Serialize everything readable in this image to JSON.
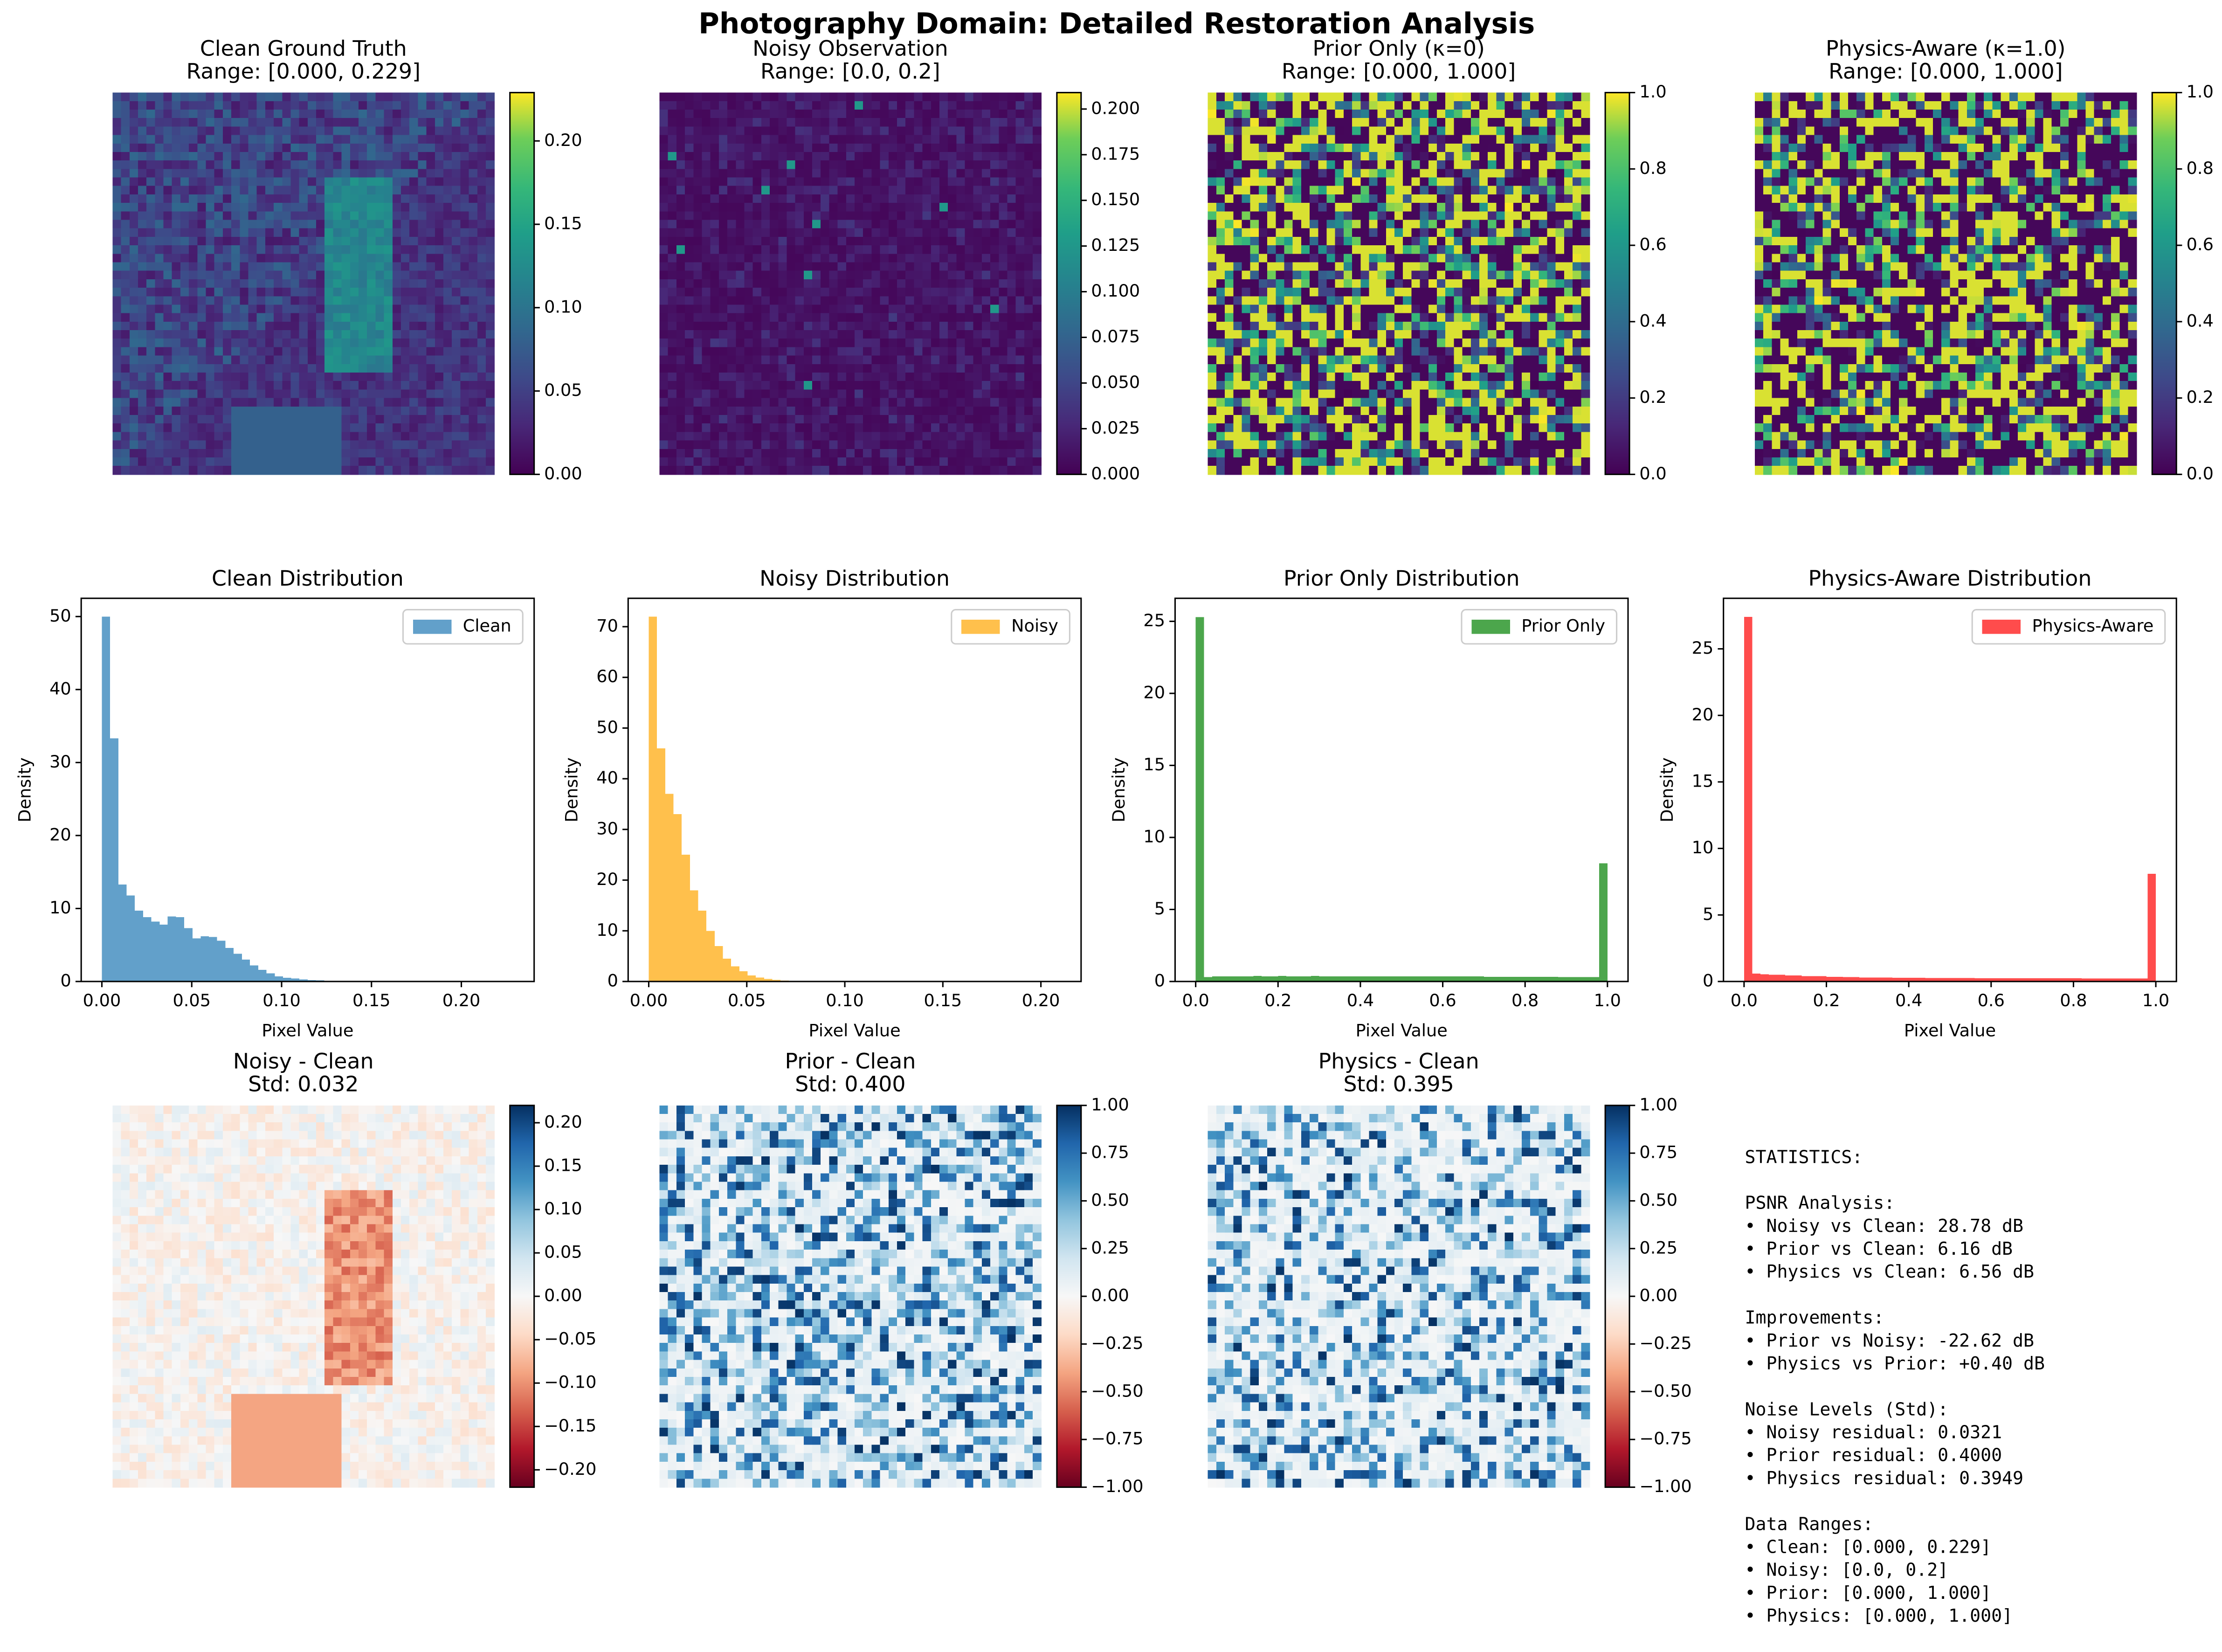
{
  "title": "Photography Domain: Detailed Restoration Analysis",
  "chart_data": [
    {
      "type": "heatmap",
      "title": "Clean Ground Truth",
      "subtitle": "Range: [0.000, 0.229]",
      "colormap": "viridis",
      "clim": [
        0,
        0.229
      ],
      "cticks": [
        {
          "value": 0,
          "label": "0.00"
        },
        0.05,
        {
          "value": 0.1,
          "label": "0.10"
        },
        0.15,
        {
          "value": 0.2,
          "label": "0.20"
        }
      ]
    },
    {
      "type": "heatmap",
      "title": "Noisy Observation",
      "subtitle": "Range: [0.0, 0.2]",
      "colormap": "viridis",
      "clim": [
        0,
        0.209
      ],
      "cticks": [
        {
          "value": 0,
          "label": "0.000"
        },
        0.025,
        {
          "value": 0.05,
          "label": "0.050"
        },
        0.075,
        {
          "value": 0.1,
          "label": "0.100"
        },
        0.125,
        {
          "value": 0.15,
          "label": "0.150"
        },
        0.175,
        {
          "value": 0.2,
          "label": "0.200"
        }
      ]
    },
    {
      "type": "heatmap",
      "title": "Prior Only (κ=0)",
      "subtitle": "Range: [0.000, 1.000]",
      "colormap": "viridis",
      "clim": [
        0,
        1
      ],
      "cticks": [
        {
          "value": 0,
          "label": "0.0"
        },
        0.2,
        0.4,
        0.6,
        0.8,
        {
          "value": 1,
          "label": "1.0"
        }
      ]
    },
    {
      "type": "heatmap",
      "title": "Physics-Aware (κ=1.0)",
      "subtitle": "Range: [0.000, 1.000]",
      "colormap": "viridis",
      "clim": [
        0,
        1
      ],
      "cticks": [
        {
          "value": 0,
          "label": "0.0"
        },
        0.2,
        0.4,
        0.6,
        0.8,
        {
          "value": 1,
          "label": "1.0"
        }
      ]
    },
    {
      "type": "histogram",
      "title": "Clean Distribution",
      "xlabel": "Pixel Value",
      "ylabel": "Density",
      "xlim": [
        -0.0115,
        0.2405
      ],
      "ylim": [
        0,
        52.5
      ],
      "xticks": [
        {
          "value": 0,
          "label": "0.00"
        },
        0.05,
        {
          "value": 0.1,
          "label": "0.10"
        },
        0.15,
        {
          "value": 0.2,
          "label": "0.20"
        }
      ],
      "yticks": [
        0,
        10,
        20,
        30,
        40,
        50
      ],
      "bins": [
        0,
        0.0046,
        0.0092,
        0.0137,
        0.0183,
        0.0229,
        0.0275,
        0.0321,
        0.0366,
        0.0412,
        0.0458,
        0.0504,
        0.055,
        0.0595,
        0.0641,
        0.0687,
        0.0733,
        0.0779,
        0.0824,
        0.087,
        0.0916,
        0.0962,
        0.1008,
        0.1053,
        0.1099,
        0.1145,
        0.1191,
        0.1237,
        0.1282,
        0.1328,
        0.1374,
        0.142,
        0.1466,
        0.1511,
        0.1557,
        0.1603,
        0.1649,
        0.1695,
        0.174,
        0.1786,
        0.1832,
        0.1878,
        0.1924,
        0.1969,
        0.2015,
        0.2061,
        0.2107,
        0.2153,
        0.2198,
        0.2244,
        0.229
      ],
      "series": [
        {
          "name": "Clean",
          "color": "#1f77b4",
          "values": [
            50,
            33.3,
            13.3,
            11.8,
            9.7,
            8.8,
            8.2,
            7.8,
            8.9,
            8.8,
            7.3,
            5.9,
            6.2,
            6.1,
            5.6,
            4.6,
            3.8,
            3.0,
            2.2,
            1.6,
            1.1,
            0.7,
            0.5,
            0.4,
            0.3,
            0.2,
            0.15,
            0.1,
            0.05,
            0.03,
            0.02,
            0.01,
            0,
            0,
            0,
            0,
            0,
            0,
            0,
            0,
            0,
            0,
            0,
            0,
            0,
            0,
            0,
            0,
            0,
            0
          ]
        }
      ],
      "legend": "upper right"
    },
    {
      "type": "histogram",
      "title": "Noisy Distribution",
      "xlabel": "Pixel Value",
      "ylabel": "Density",
      "xlim": [
        -0.0105,
        0.2205
      ],
      "ylim": [
        0,
        75.6
      ],
      "xticks": [
        {
          "value": 0,
          "label": "0.00"
        },
        0.05,
        {
          "value": 0.1,
          "label": "0.10"
        },
        0.15,
        {
          "value": 0.2,
          "label": "0.20"
        }
      ],
      "yticks": [
        0,
        10,
        20,
        30,
        40,
        50,
        60,
        70
      ],
      "bins": [
        0,
        0.0042,
        0.0084,
        0.0126,
        0.0168,
        0.021,
        0.0252,
        0.0294,
        0.0336,
        0.0378,
        0.042,
        0.0462,
        0.0504,
        0.0546,
        0.0588,
        0.063,
        0.0672,
        0.0714,
        0.0756,
        0.0798,
        0.084,
        0.0882,
        0.0924,
        0.0966,
        0.1008,
        0.105,
        0.1092,
        0.1134,
        0.1176,
        0.1218,
        0.126,
        0.1302,
        0.1344,
        0.1386,
        0.1428,
        0.147,
        0.1512,
        0.1554,
        0.1596,
        0.1638,
        0.168,
        0.1722,
        0.1764,
        0.1806,
        0.1848,
        0.189,
        0.1932,
        0.1974,
        0.2016,
        0.2058,
        0.21
      ],
      "series": [
        {
          "name": "Noisy",
          "color": "#ffa500",
          "values": [
            72,
            46,
            37,
            33,
            25,
            18,
            14,
            10,
            7,
            4.5,
            3,
            2,
            1.2,
            0.8,
            0.5,
            0.3,
            0.2,
            0.1,
            0.05,
            0,
            0,
            0,
            0,
            0,
            0,
            0,
            0,
            0,
            0,
            0,
            0,
            0,
            0,
            0,
            0,
            0,
            0,
            0,
            0,
            0,
            0,
            0,
            0,
            0,
            0,
            0,
            0,
            0,
            0,
            0
          ]
        }
      ],
      "legend": "upper right"
    },
    {
      "type": "histogram",
      "title": "Prior Only Distribution",
      "xlabel": "Pixel Value",
      "ylabel": "Density",
      "xlim": [
        -0.05,
        1.05
      ],
      "ylim": [
        0,
        26.6
      ],
      "xticks": [
        {
          "value": 0,
          "label": "0.0"
        },
        0.2,
        0.4,
        0.6,
        0.8,
        {
          "value": 1,
          "label": "1.0"
        }
      ],
      "yticks": [
        0,
        5,
        10,
        15,
        20,
        25
      ],
      "bins": [
        0,
        0.02,
        0.04,
        0.06,
        0.08,
        0.1,
        0.12,
        0.14,
        0.16,
        0.18,
        0.2,
        0.22,
        0.24,
        0.26,
        0.28,
        0.3,
        0.32,
        0.34,
        0.36,
        0.38,
        0.4,
        0.42,
        0.44,
        0.46,
        0.48,
        0.5,
        0.52,
        0.54,
        0.56,
        0.58,
        0.6,
        0.62,
        0.64,
        0.66,
        0.68,
        0.7,
        0.72,
        0.74,
        0.76,
        0.78,
        0.8,
        0.82,
        0.84,
        0.86,
        0.88,
        0.9,
        0.92,
        0.94,
        0.96,
        0.98,
        1
      ],
      "series": [
        {
          "name": "Prior Only",
          "color": "#008000",
          "values": [
            25.3,
            0.3,
            0.35,
            0.35,
            0.35,
            0.35,
            0.35,
            0.38,
            0.35,
            0.35,
            0.38,
            0.35,
            0.35,
            0.35,
            0.38,
            0.35,
            0.35,
            0.35,
            0.35,
            0.35,
            0.35,
            0.35,
            0.35,
            0.35,
            0.35,
            0.35,
            0.35,
            0.35,
            0.35,
            0.35,
            0.35,
            0.35,
            0.35,
            0.35,
            0.35,
            0.33,
            0.33,
            0.33,
            0.33,
            0.33,
            0.33,
            0.33,
            0.33,
            0.33,
            0.3,
            0.3,
            0.3,
            0.3,
            0.3,
            8.2
          ]
        }
      ],
      "legend": "upper right"
    },
    {
      "type": "histogram",
      "title": "Physics-Aware Distribution",
      "xlabel": "Pixel Value",
      "ylabel": "Density",
      "xlim": [
        -0.05,
        1.05
      ],
      "ylim": [
        0,
        28.8
      ],
      "xticks": [
        {
          "value": 0,
          "label": "0.0"
        },
        0.2,
        0.4,
        0.6,
        0.8,
        {
          "value": 1,
          "label": "1.0"
        }
      ],
      "yticks": [
        0,
        5,
        10,
        15,
        20,
        25
      ],
      "bins": [
        0,
        0.02,
        0.04,
        0.06,
        0.08,
        0.1,
        0.12,
        0.14,
        0.16,
        0.18,
        0.2,
        0.22,
        0.24,
        0.26,
        0.28,
        0.3,
        0.32,
        0.34,
        0.36,
        0.38,
        0.4,
        0.42,
        0.44,
        0.46,
        0.48,
        0.5,
        0.52,
        0.54,
        0.56,
        0.58,
        0.6,
        0.62,
        0.64,
        0.66,
        0.68,
        0.7,
        0.72,
        0.74,
        0.76,
        0.78,
        0.8,
        0.82,
        0.84,
        0.86,
        0.88,
        0.9,
        0.92,
        0.94,
        0.96,
        0.98,
        1
      ],
      "series": [
        {
          "name": "Physics-Aware",
          "color": "#ff0000",
          "values": [
            27.4,
            0.6,
            0.55,
            0.5,
            0.5,
            0.45,
            0.45,
            0.4,
            0.4,
            0.4,
            0.35,
            0.35,
            0.33,
            0.33,
            0.3,
            0.3,
            0.3,
            0.3,
            0.28,
            0.28,
            0.28,
            0.28,
            0.27,
            0.27,
            0.27,
            0.26,
            0.26,
            0.26,
            0.25,
            0.25,
            0.25,
            0.25,
            0.25,
            0.25,
            0.25,
            0.24,
            0.24,
            0.24,
            0.24,
            0.24,
            0.24,
            0.23,
            0.23,
            0.23,
            0.23,
            0.22,
            0.22,
            0.22,
            0.22,
            8.1
          ]
        }
      ],
      "legend": "upper right"
    },
    {
      "type": "heatmap",
      "title": "Noisy - Clean",
      "subtitle": "Std: 0.032",
      "colormap": "RdBu",
      "clim": [
        -0.22,
        0.22
      ],
      "cticks": [
        {
          "value": -0.2,
          "label": "−0.20"
        },
        {
          "value": -0.15,
          "label": "−0.15"
        },
        {
          "value": -0.1,
          "label": "−0.10"
        },
        {
          "value": -0.05,
          "label": "−0.05"
        },
        {
          "value": 0,
          "label": "0.00"
        },
        0.05,
        {
          "value": 0.1,
          "label": "0.10"
        },
        0.15,
        {
          "value": 0.2,
          "label": "0.20"
        }
      ]
    },
    {
      "type": "heatmap",
      "title": "Prior - Clean",
      "subtitle": "Std: 0.400",
      "colormap": "RdBu",
      "clim": [
        -1,
        1
      ],
      "cticks": [
        {
          "value": -1,
          "label": "−1.00"
        },
        {
          "value": -0.75,
          "label": "−0.75"
        },
        {
          "value": -0.5,
          "label": "−0.50"
        },
        {
          "value": -0.25,
          "label": "−0.25"
        },
        {
          "value": 0,
          "label": "0.00"
        },
        0.25,
        {
          "value": 0.5,
          "label": "0.50"
        },
        0.75,
        {
          "value": 1,
          "label": "1.00"
        }
      ]
    },
    {
      "type": "heatmap",
      "title": "Physics - Clean",
      "subtitle": "Std: 0.395",
      "colormap": "RdBu",
      "clim": [
        -1,
        1
      ],
      "cticks": [
        {
          "value": -1,
          "label": "−1.00"
        },
        {
          "value": -0.75,
          "label": "−0.75"
        },
        {
          "value": -0.5,
          "label": "−0.50"
        },
        {
          "value": -0.25,
          "label": "−0.25"
        },
        {
          "value": 0,
          "label": "0.00"
        },
        0.25,
        {
          "value": 0.5,
          "label": "0.50"
        },
        0.75,
        {
          "value": 1,
          "label": "1.00"
        }
      ]
    }
  ],
  "stats": {
    "heading": "STATISTICS:",
    "sections": [
      {
        "title": "PSNR Analysis:",
        "lines": [
          "• Noisy vs Clean: 28.78 dB",
          "• Prior vs Clean: 6.16 dB",
          "• Physics vs Clean: 6.56 dB"
        ]
      },
      {
        "title": "Improvements:",
        "lines": [
          "• Prior vs Noisy: -22.62 dB",
          "• Physics vs Prior: +0.40 dB"
        ]
      },
      {
        "title": "Noise Levels (Std):",
        "lines": [
          "• Noisy residual: 0.0321",
          "• Prior residual: 0.4000",
          "• Physics residual: 0.3949"
        ]
      },
      {
        "title": "Data Ranges:",
        "lines": [
          "• Clean: [0.000, 0.229]",
          "• Noisy: [0.0, 0.2]",
          "• Prior: [0.000, 1.000]",
          "• Physics: [0.000, 1.000]"
        ]
      }
    ]
  }
}
